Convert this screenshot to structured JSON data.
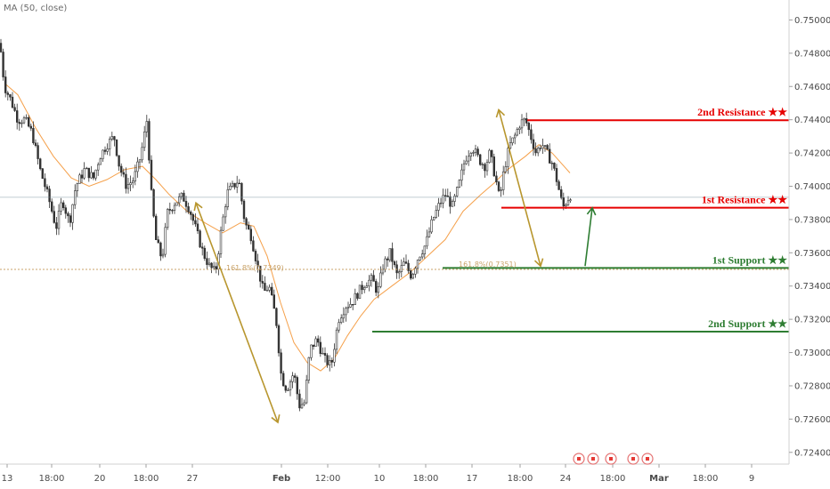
{
  "indicator": {
    "label": "MA (50, close)"
  },
  "colors": {
    "up": "#3a3a3a",
    "down": "#3a3a3a",
    "ma": "#f5a04a",
    "resistance": "#e60000",
    "support": "#2e7d32",
    "arrow_down": "#b8962e",
    "arrow_up": "#2e7d32",
    "fib": "#c9a36a",
    "current_price": "#78909c"
  },
  "chart_data": {
    "type": "candlestick",
    "ylim": [
      0.7234,
      0.7512
    ],
    "y_ticks": [
      "0.75000",
      "0.74800",
      "0.74600",
      "0.74400",
      "0.74200",
      "0.74000",
      "0.73800",
      "0.73600",
      "0.73400",
      "0.73200",
      "0.73000",
      "0.72800",
      "0.72600",
      "0.72400"
    ],
    "x_ticks": [
      "13",
      "18:00",
      "20",
      "18:00",
      "27",
      "Feb",
      "12:00",
      "10",
      "18:00",
      "17",
      "18:00",
      "24",
      "18:00",
      "Mar",
      "18:00",
      "9"
    ],
    "series_note": "",
    "price_path": [
      [
        0,
        0.7486
      ],
      [
        5,
        0.746
      ],
      [
        12,
        0.7452
      ],
      [
        20,
        0.744
      ],
      [
        28,
        0.744
      ],
      [
        36,
        0.7432
      ],
      [
        45,
        0.741
      ],
      [
        55,
        0.7392
      ],
      [
        63,
        0.7375
      ],
      [
        70,
        0.7392
      ],
      [
        78,
        0.7378
      ],
      [
        85,
        0.74
      ],
      [
        95,
        0.741
      ],
      [
        105,
        0.7405
      ],
      [
        112,
        0.7418
      ],
      [
        120,
        0.7425
      ],
      [
        128,
        0.743
      ],
      [
        134,
        0.7412
      ],
      [
        142,
        0.74
      ],
      [
        150,
        0.7404
      ],
      [
        158,
        0.7418
      ],
      [
        165,
        0.744
      ],
      [
        170,
        0.7395
      ],
      [
        175,
        0.7368
      ],
      [
        182,
        0.7356
      ],
      [
        188,
        0.7384
      ],
      [
        196,
        0.739
      ],
      [
        205,
        0.7394
      ],
      [
        213,
        0.7386
      ],
      [
        220,
        0.7374
      ],
      [
        228,
        0.736
      ],
      [
        235,
        0.7352
      ],
      [
        242,
        0.7348
      ],
      [
        248,
        0.7372
      ],
      [
        255,
        0.7396
      ],
      [
        262,
        0.74
      ],
      [
        268,
        0.7404
      ],
      [
        275,
        0.7378
      ],
      [
        282,
        0.737
      ],
      [
        290,
        0.735
      ],
      [
        296,
        0.7336
      ],
      [
        302,
        0.734
      ],
      [
        310,
        0.732
      ],
      [
        316,
        0.7285
      ],
      [
        322,
        0.7278
      ],
      [
        330,
        0.7288
      ],
      [
        336,
        0.7268
      ],
      [
        342,
        0.727
      ],
      [
        348,
        0.7302
      ],
      [
        356,
        0.7308
      ],
      [
        364,
        0.7296
      ],
      [
        372,
        0.7292
      ],
      [
        380,
        0.732
      ],
      [
        388,
        0.7328
      ],
      [
        395,
        0.733
      ],
      [
        402,
        0.7336
      ],
      [
        410,
        0.7342
      ],
      [
        418,
        0.7344
      ],
      [
        424,
        0.7336
      ],
      [
        430,
        0.7352
      ],
      [
        438,
        0.736
      ],
      [
        446,
        0.7346
      ],
      [
        454,
        0.7354
      ],
      [
        462,
        0.7346
      ],
      [
        470,
        0.7358
      ],
      [
        478,
        0.7365
      ],
      [
        486,
        0.738
      ],
      [
        494,
        0.739
      ],
      [
        500,
        0.7395
      ],
      [
        508,
        0.7388
      ],
      [
        515,
        0.74
      ],
      [
        522,
        0.7416
      ],
      [
        530,
        0.7424
      ],
      [
        538,
        0.7416
      ],
      [
        545,
        0.7412
      ],
      [
        550,
        0.742
      ],
      [
        556,
        0.7406
      ],
      [
        561,
        0.7392
      ],
      [
        566,
        0.741
      ],
      [
        572,
        0.7424
      ],
      [
        578,
        0.743
      ],
      [
        584,
        0.7438
      ],
      [
        590,
        0.744
      ],
      [
        596,
        0.743
      ],
      [
        602,
        0.742
      ],
      [
        608,
        0.7426
      ],
      [
        614,
        0.742
      ],
      [
        620,
        0.7414
      ],
      [
        626,
        0.7402
      ],
      [
        632,
        0.7387
      ],
      [
        637,
        0.7392
      ],
      [
        641,
        0.7395
      ]
    ],
    "ma_path": [
      [
        5,
        0.7462
      ],
      [
        20,
        0.7455
      ],
      [
        40,
        0.7435
      ],
      [
        60,
        0.7418
      ],
      [
        80,
        0.7405
      ],
      [
        100,
        0.74
      ],
      [
        120,
        0.7404
      ],
      [
        140,
        0.741
      ],
      [
        160,
        0.7412
      ],
      [
        175,
        0.7404
      ],
      [
        190,
        0.7395
      ],
      [
        210,
        0.7385
      ],
      [
        230,
        0.7378
      ],
      [
        250,
        0.7372
      ],
      [
        270,
        0.7378
      ],
      [
        285,
        0.7376
      ],
      [
        300,
        0.7358
      ],
      [
        315,
        0.733
      ],
      [
        330,
        0.7306
      ],
      [
        345,
        0.7294
      ],
      [
        360,
        0.7289
      ],
      [
        375,
        0.7296
      ],
      [
        390,
        0.731
      ],
      [
        405,
        0.7322
      ],
      [
        420,
        0.7332
      ],
      [
        440,
        0.734
      ],
      [
        460,
        0.7348
      ],
      [
        480,
        0.7358
      ],
      [
        500,
        0.7368
      ],
      [
        520,
        0.7385
      ],
      [
        540,
        0.7395
      ],
      [
        555,
        0.7402
      ],
      [
        570,
        0.741
      ],
      [
        590,
        0.7418
      ],
      [
        605,
        0.7425
      ],
      [
        620,
        0.742
      ],
      [
        640,
        0.7408
      ]
    ],
    "levels": [
      {
        "name": "2nd Resistance ★★",
        "price": "0.74397",
        "value": 0.74397,
        "x_start": 592,
        "kind": "resistance"
      },
      {
        "name": "1st Resistance ★★",
        "price": "0.73871",
        "value": 0.73871,
        "x_start": 563,
        "kind": "resistance"
      },
      {
        "name": "1st Support ★★",
        "price": "0.73509",
        "value": 0.73509,
        "x_start": 497,
        "kind": "support"
      },
      {
        "name": "2nd Support ★★",
        "price": "0.73126",
        "value": 0.73126,
        "x_start": 418,
        "kind": "support"
      }
    ],
    "current_price": {
      "label": "0.73934",
      "value": 0.73934
    },
    "fib_labels": [
      {
        "text": "161.8%(0.7349)",
        "value": 0.7349,
        "x": 254
      },
      {
        "text": "161.8%(0.7351)",
        "value": 0.7351,
        "x": 515
      }
    ],
    "arrows": [
      {
        "from": [
          220,
          0.739
        ],
        "to": [
          312,
          0.7258
        ],
        "kind": "down"
      },
      {
        "from": [
          560,
          0.7446
        ],
        "to": [
          607,
          0.7352
        ],
        "kind": "down"
      },
      {
        "from": [
          657,
          0.7352
        ],
        "to": [
          665,
          0.7387
        ],
        "kind": "up"
      }
    ]
  },
  "event_icons": [
    {
      "name": "flag-event-icon",
      "x": 650
    },
    {
      "name": "event-marker-icon",
      "x": 666
    },
    {
      "name": "event-marker-icon-2",
      "x": 686
    },
    {
      "name": "flag-event-icon-2",
      "x": 711
    },
    {
      "name": "event-marker-icon-3",
      "x": 727
    }
  ]
}
